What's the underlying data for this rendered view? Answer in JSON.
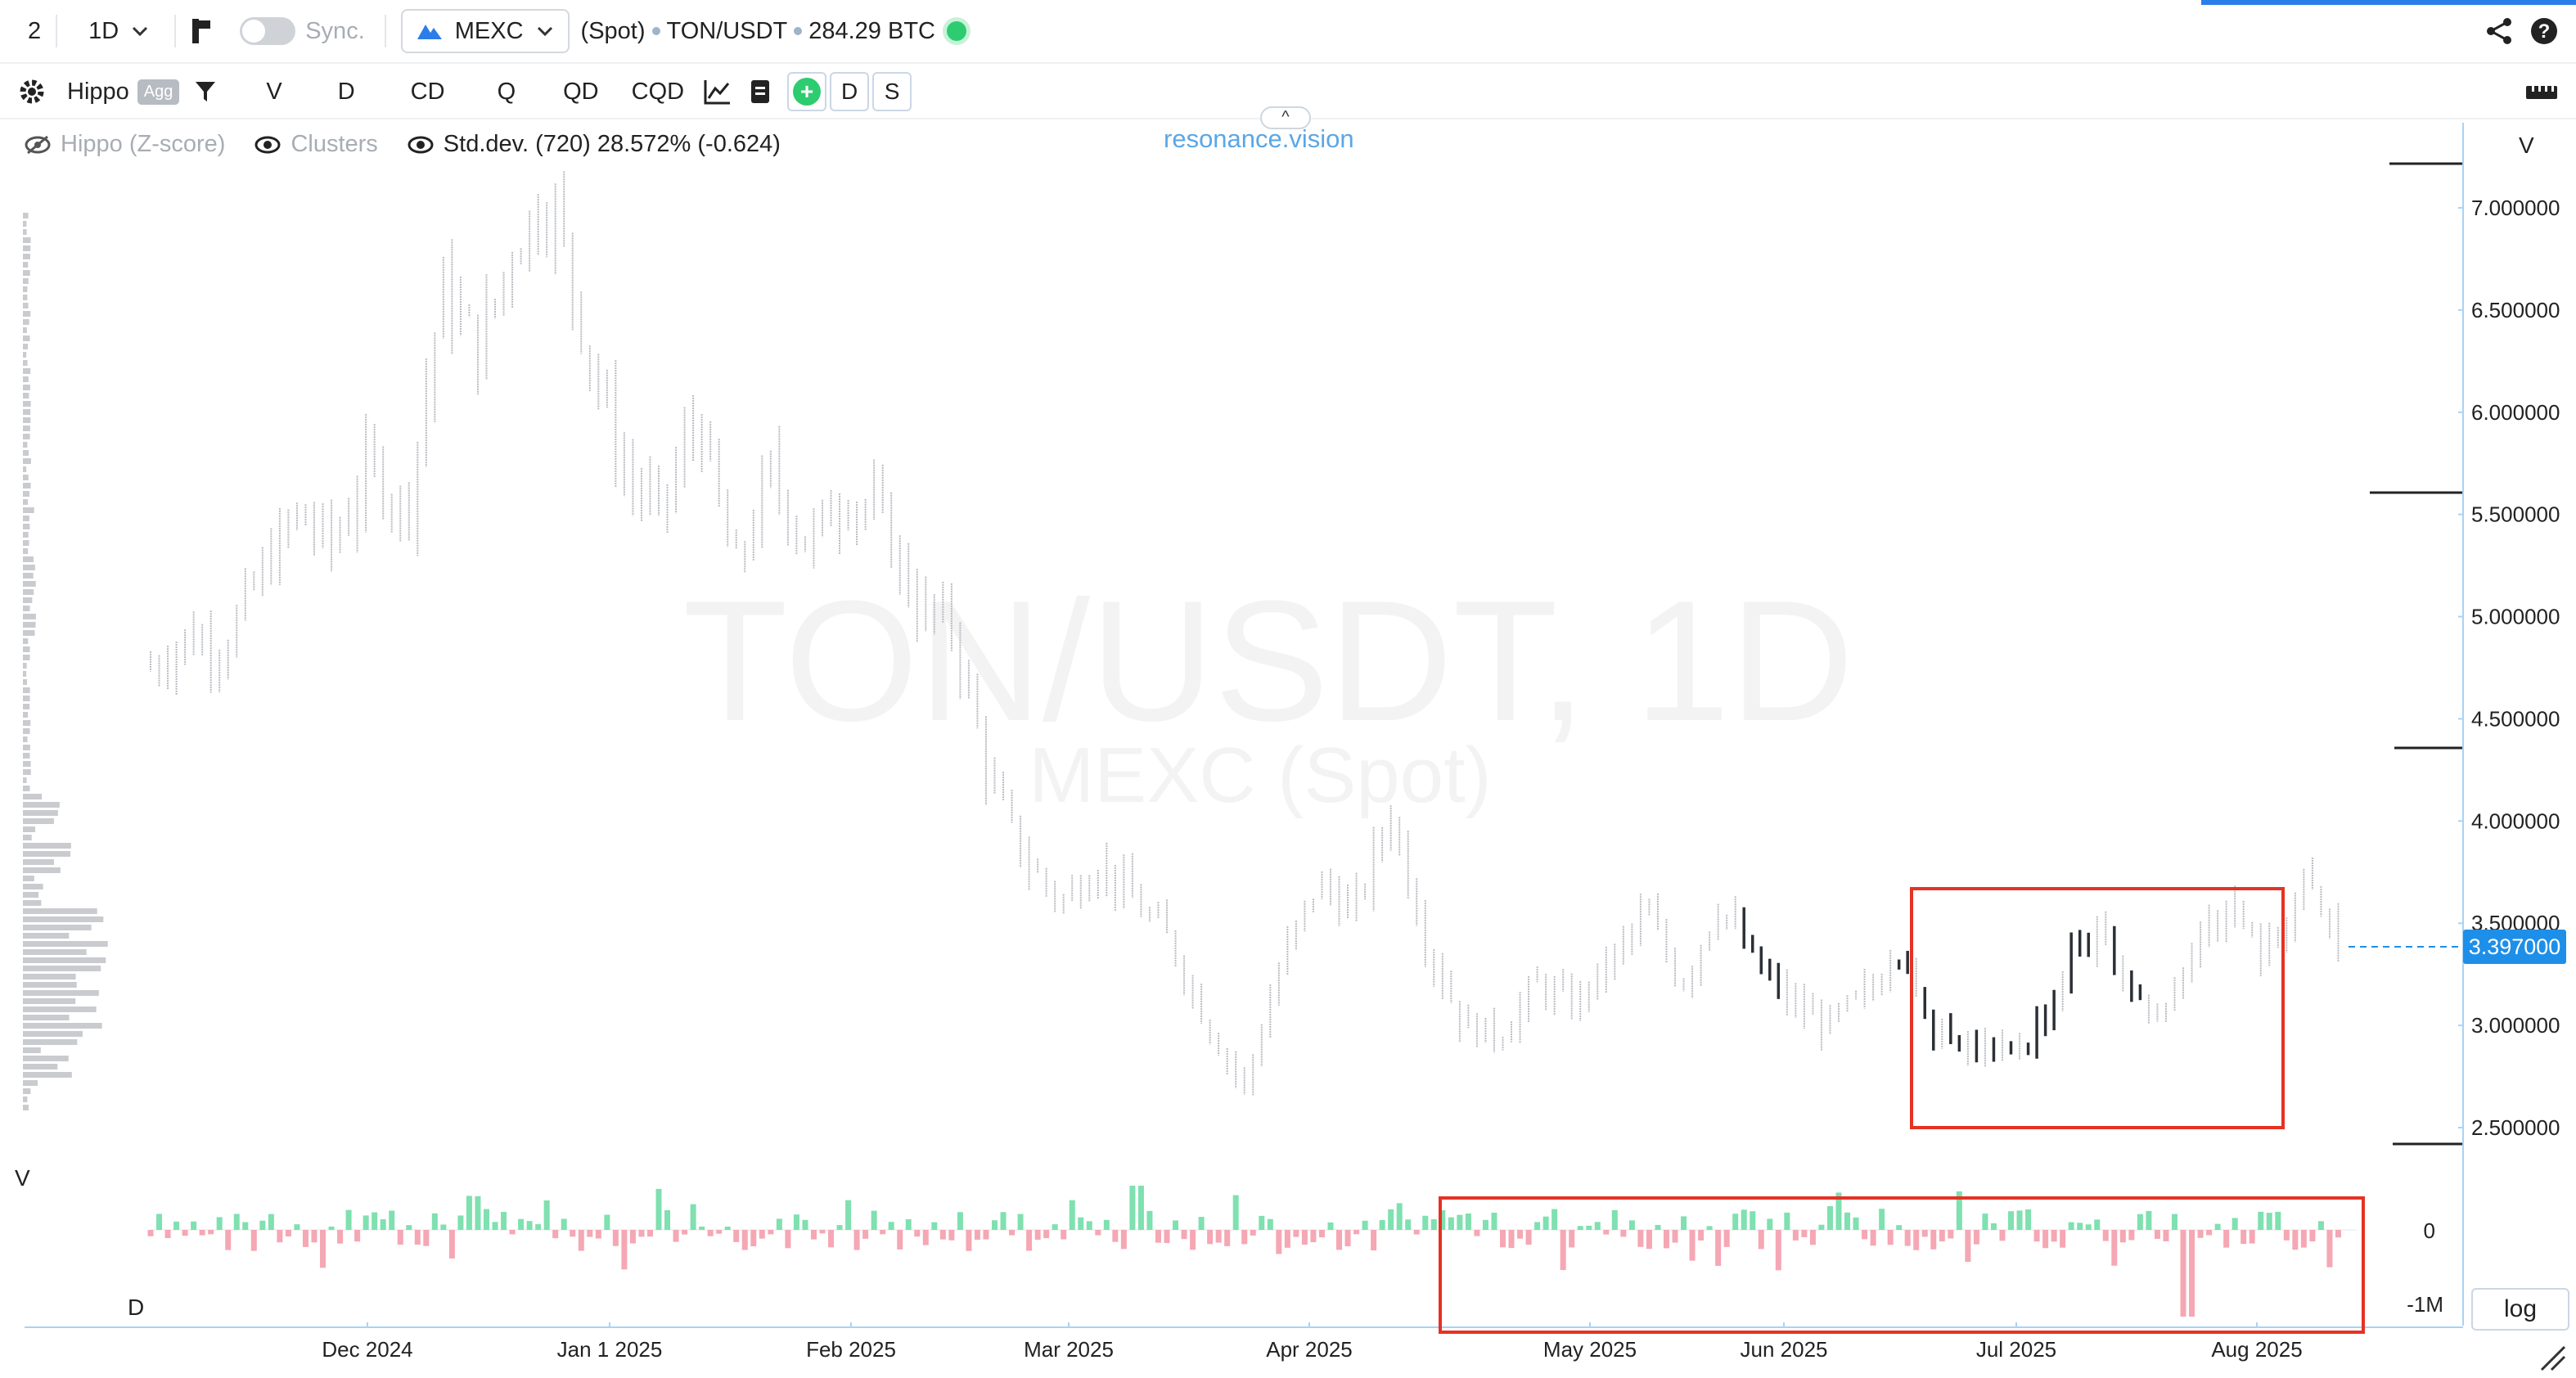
{
  "topbar": {
    "layout_number": "2",
    "timeframe": "1D",
    "sync_label": "Sync.",
    "exchange": "MEXC",
    "market_type": "(Spot)",
    "symbol": "TON/USDT",
    "volume_btc": "284.29 BTC",
    "status_color": "#2ecc71"
  },
  "toolbar": {
    "indicator_name": "Hippo",
    "agg_badge": "Agg",
    "buttons": [
      "V",
      "D",
      "CD",
      "Q",
      "QD",
      "CQD"
    ],
    "box_buttons": [
      "D",
      "S"
    ]
  },
  "indicators": {
    "hippo_zscore": "Hippo (Z-score)",
    "clusters": "Clusters",
    "stddev": "Std.dev. (720) 28.572% (-0.624)"
  },
  "brand": "resonance.vision",
  "watermark": {
    "line1": "TON/USDT, 1D",
    "line2": "MEXC (Spot)"
  },
  "price_axis_label": "V",
  "volume_panel": {
    "left_label": "V",
    "bottom_label": "D",
    "ticks": [
      "0",
      "-1M"
    ]
  },
  "current_price": "3.397000",
  "log_button": "log",
  "chart_data": {
    "type": "candlestick",
    "x_ticks": [
      "Dec 2024",
      "Jan 1 2025",
      "Feb 2025",
      "Mar 2025",
      "Apr 2025",
      "May 2025",
      "Jun 2025",
      "Jul 2025",
      "Aug 2025"
    ],
    "y_ticks": [
      "2.500000",
      "3.000000",
      "3.500000",
      "4.000000",
      "4.500000",
      "5.000000",
      "5.500000",
      "6.000000",
      "6.500000",
      "7.000000"
    ],
    "ylim": [
      2.2,
      7.3
    ],
    "current_price": 3.397,
    "daily_closes": [
      4.75,
      4.9,
      4.85,
      5.2,
      5.5,
      5.35,
      5.75,
      5.5,
      6.6,
      6.3,
      6.85,
      7.05,
      6.3,
      5.7,
      5.5,
      6.0,
      5.2,
      5.7,
      5.35,
      5.6,
      5.5,
      5.05,
      4.95,
      4.2,
      3.8,
      3.6,
      3.8,
      3.6,
      3.4,
      3.0,
      2.7,
      3.3,
      3.7,
      3.55,
      4.05,
      3.4,
      3.0,
      2.95,
      3.2,
      3.1,
      3.3,
      3.55,
      3.2,
      3.6,
      3.3,
      3.1,
      3.0,
      3.15,
      3.3,
      3.0,
      2.9,
      2.85,
      3.05,
      3.45,
      3.3,
      3.0,
      3.4,
      3.6,
      3.3,
      3.7,
      3.4
    ],
    "highlight_boxes": [
      "price-range-jun-aug-2025",
      "volume-delta-may-aug-2025"
    ]
  },
  "colors": {
    "buy": "#7fe0b0",
    "sell": "#f5a7b4",
    "highlight": "#e53224",
    "price_tag": "#1e8fe8"
  }
}
